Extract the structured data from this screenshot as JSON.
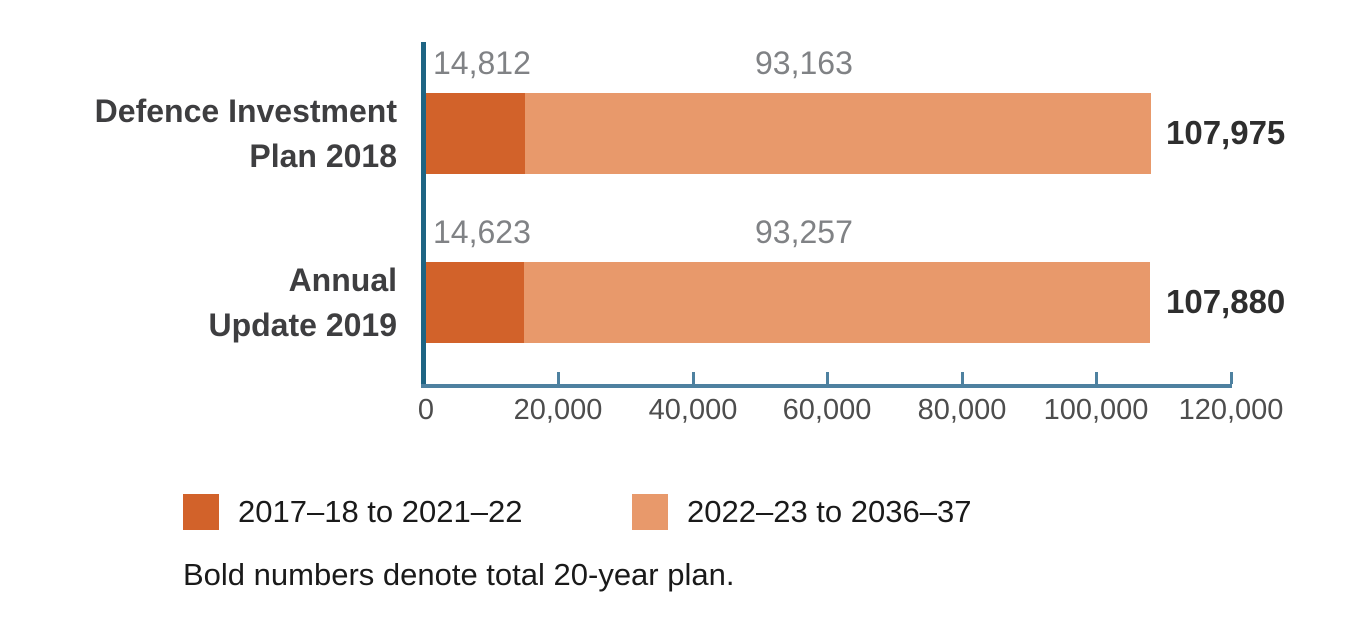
{
  "chart_data": {
    "type": "bar",
    "orientation": "horizontal",
    "stacked": true,
    "title": "",
    "categories": [
      "Defence Investment Plan 2018",
      "Annual Update 2019"
    ],
    "series": [
      {
        "name": "2017–18 to 2021–22",
        "color": "#d2622a",
        "values": [
          14812,
          14623
        ]
      },
      {
        "name": "2022–23 to 2036–37",
        "color": "#e8996b",
        "values": [
          93163,
          93257
        ]
      }
    ],
    "totals": [
      107975,
      107880
    ],
    "xlim": [
      0,
      120000
    ],
    "x_tick_values": [
      0,
      20000,
      40000,
      60000,
      80000,
      100000,
      120000
    ],
    "grid": false,
    "legend_position": "bottom",
    "axis_vertical_color": "#1e6483",
    "axis_horizontal_color": "#4e81a0",
    "note": "Bold numbers denote total 20-year plan."
  },
  "display": {
    "rows": [
      {
        "category_line1": "Defence Investment",
        "category_line2": "Plan 2018",
        "seg1_label": "14,812",
        "seg2_label": "93,163",
        "total": "107,975"
      },
      {
        "category_line1": "Annual",
        "category_line2": "Update 2019",
        "seg1_label": "14,623",
        "seg2_label": "93,257",
        "total": "107,880"
      }
    ],
    "ticks": [
      "0",
      "20,000",
      "40,000",
      "60,000",
      "80,000",
      "100,000",
      "120,000"
    ],
    "legend": [
      {
        "label": "2017–18 to 2021–22"
      },
      {
        "label": "2022–23 to 2036–37"
      }
    ],
    "note": "Bold numbers denote total 20-year plan."
  }
}
